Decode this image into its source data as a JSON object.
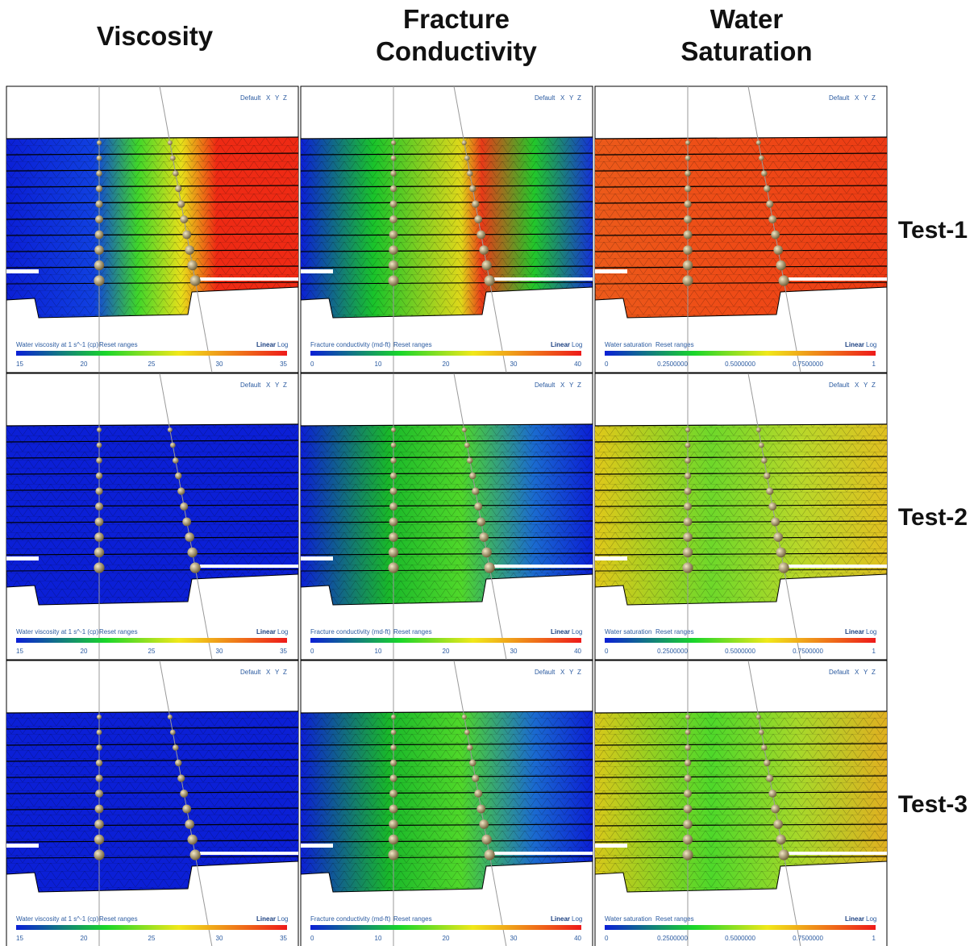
{
  "columns": [
    {
      "title": [
        "Viscosity"
      ]
    },
    {
      "title": [
        "Fracture",
        "Conductivity"
      ]
    },
    {
      "title": [
        "Water",
        "Saturation"
      ]
    }
  ],
  "rows": [
    {
      "label": "Test-1"
    },
    {
      "label": "Test-2"
    },
    {
      "label": "Test-3"
    }
  ],
  "panels": [
    [
      {
        "view": [
          "Default",
          "X",
          "Y",
          "Z"
        ],
        "legend": {
          "label": "Water viscosity at 1 s^-1 (cp)",
          "reset": "Reset ranges",
          "scales": [
            "Linear",
            "Log"
          ],
          "ticks": [
            "15",
            "20",
            "25",
            "30",
            "35"
          ]
        }
      },
      {
        "view": [
          "Default",
          "X",
          "Y",
          "Z"
        ],
        "legend": {
          "label": "Fracture conductivity (md-ft)",
          "reset": "Reset ranges",
          "scales": [
            "Linear",
            "Log"
          ],
          "ticks": [
            "0",
            "10",
            "20",
            "30",
            "40"
          ]
        }
      },
      {
        "view": [
          "Default",
          "X",
          "Y",
          "Z"
        ],
        "legend": {
          "label": "Water saturation",
          "reset": "Reset ranges",
          "scales": [
            "Linear",
            "Log"
          ],
          "ticks": [
            "0",
            "0.2500000",
            "0.5000000",
            "0.7500000",
            "1"
          ]
        }
      }
    ],
    [
      {
        "view": [
          "Default",
          "X",
          "Y",
          "Z"
        ],
        "legend": {
          "label": "Water viscosity at 1 s^-1 (cp)",
          "reset": "Reset ranges",
          "scales": [
            "Linear",
            "Log"
          ],
          "ticks": [
            "15",
            "20",
            "25",
            "30",
            "35"
          ]
        }
      },
      {
        "view": [
          "Default",
          "X",
          "Y",
          "Z"
        ],
        "legend": {
          "label": "Fracture conductivity (md-ft)",
          "reset": "Reset ranges",
          "scales": [
            "Linear",
            "Log"
          ],
          "ticks": [
            "0",
            "10",
            "20",
            "30",
            "40"
          ]
        }
      },
      {
        "view": [
          "Default",
          "X",
          "Y",
          "Z"
        ],
        "legend": {
          "label": "Water saturation",
          "reset": "Reset ranges",
          "scales": [
            "Linear",
            "Log"
          ],
          "ticks": [
            "0",
            "0.2500000",
            "0.5000000",
            "0.7500000",
            "1"
          ]
        }
      }
    ],
    [
      {
        "view": [
          "Default",
          "X",
          "Y",
          "Z"
        ],
        "legend": {
          "label": "Water viscosity at 1 s^-1 (cp)",
          "reset": "Reset ranges",
          "scales": [
            "Linear",
            "Log"
          ],
          "ticks": [
            "15",
            "20",
            "25",
            "30",
            "35"
          ]
        }
      },
      {
        "view": [
          "Default",
          "X",
          "Y",
          "Z"
        ],
        "legend": {
          "label": "Fracture conductivity (md-ft)",
          "reset": "Reset ranges",
          "scales": [
            "Linear",
            "Log"
          ],
          "ticks": [
            "0",
            "10",
            "20",
            "30",
            "40"
          ]
        }
      },
      {
        "view": [
          "Default",
          "X",
          "Y",
          "Z"
        ],
        "legend": {
          "label": "Water saturation",
          "reset": "Reset ranges",
          "scales": [
            "Linear",
            "Log"
          ],
          "ticks": [
            "0",
            "0.2500000",
            "0.5000000",
            "0.7500000",
            "1"
          ]
        }
      }
    ]
  ]
}
